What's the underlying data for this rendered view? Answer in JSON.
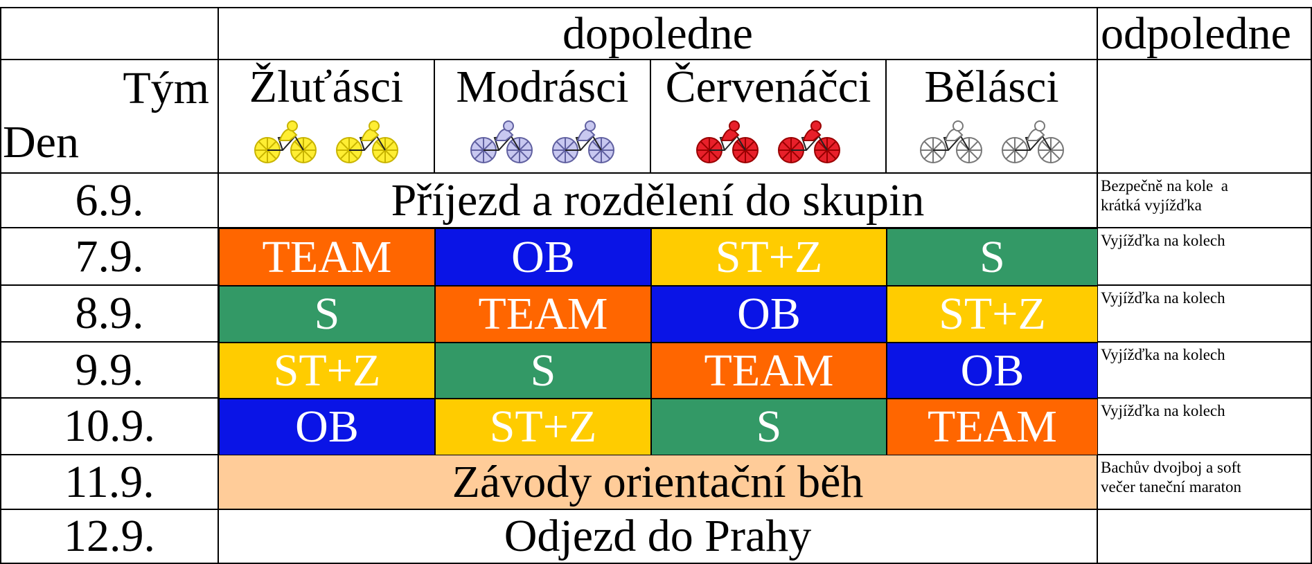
{
  "header": {
    "corner_team": "Tým",
    "corner_day": "Den",
    "morning": "dopoledne",
    "afternoon": "odpoledne",
    "teams": [
      "Žluťásci",
      "Modrásci",
      "Červenáčci",
      "Bělásci"
    ]
  },
  "rows": [
    {
      "day": "6.9.",
      "morning": "Příjezd a rozdělení do skupin",
      "afternoon": [
        "Bezpečně na kole  a",
        "krátká vyjížďka"
      ]
    },
    {
      "day": "7.9.",
      "activities": [
        "TEAM",
        "OB",
        "ST+Z",
        "S"
      ],
      "afternoon": [
        "Vyjížďka na kolech"
      ]
    },
    {
      "day": "8.9.",
      "activities": [
        "S",
        "TEAM",
        "OB",
        "ST+Z"
      ],
      "afternoon": [
        "Vyjížďka na kolech"
      ]
    },
    {
      "day": "9.9.",
      "activities": [
        "ST+Z",
        "S",
        "TEAM",
        "OB"
      ],
      "afternoon": [
        "Vyjížďka na kolech"
      ]
    },
    {
      "day": "10.9.",
      "activities": [
        "OB",
        "ST+Z",
        "S",
        "TEAM"
      ],
      "afternoon": [
        "Vyjížďka na kolech"
      ]
    },
    {
      "day": "11.9.",
      "morning": "Závody orientační běh",
      "afternoon": [
        "Bachův dvojboj a soft",
        "večer taneční maraton"
      ]
    },
    {
      "day": "12.9.",
      "morning": "Odjezd do Prahy"
    }
  ]
}
